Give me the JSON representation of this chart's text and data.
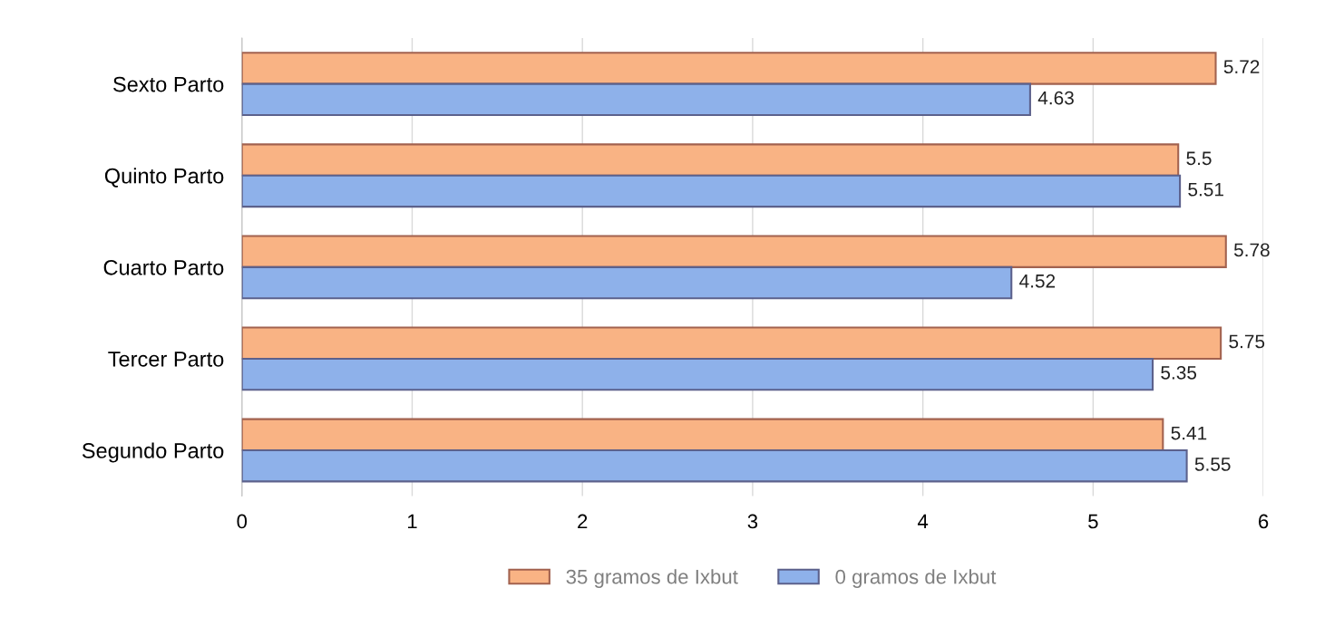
{
  "chart_data": {
    "type": "bar",
    "orientation": "horizontal",
    "categories": [
      "Sexto Parto",
      "Quinto Parto",
      "Cuarto Parto",
      "Tercer Parto",
      "Segundo Parto"
    ],
    "series": [
      {
        "name": "35 gramos de Ixbut",
        "color": "#f9b384",
        "values": [
          5.72,
          5.5,
          5.78,
          5.75,
          5.41
        ]
      },
      {
        "name": "0 gramos de Ixbut",
        "color": "#8eb1ea",
        "values": [
          4.63,
          5.51,
          4.52,
          5.35,
          5.55
        ]
      }
    ],
    "xlim": [
      0,
      6
    ],
    "xticks": [
      0,
      1,
      2,
      3,
      4,
      5,
      6
    ],
    "grid": "x",
    "legend": "bottom",
    "data_labels": true
  }
}
